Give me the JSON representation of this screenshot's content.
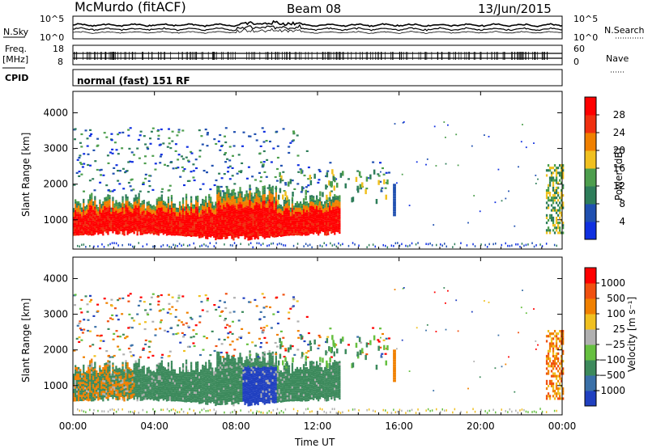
{
  "header": {
    "station": "McMurdo (fitACF)",
    "beam": "Beam 08",
    "date": "13/Jun/2015"
  },
  "top_panel": {
    "left_label": "N.Sky",
    "right_label": "N.Search",
    "left_ticks": [
      "10^5",
      "10^0"
    ],
    "right_ticks": [
      "10^5",
      "10^0"
    ]
  },
  "freq_panel": {
    "left_label_1": "Freq.",
    "left_label_2": "[MHz]",
    "right_label": "Nave",
    "left_ticks": [
      "18",
      "8"
    ],
    "right_ticks": [
      "60",
      "0"
    ]
  },
  "cpid": {
    "label": "CPID",
    "mode": "normal (fast) 151 RF"
  },
  "power_panel": {
    "ylabel": "Slant Range [km]",
    "colorbar_label": "Power [dB]"
  },
  "velocity_panel": {
    "ylabel": "Slant Range [km]",
    "colorbar_label": "Velocity [m s⁻¹]"
  },
  "xaxis": {
    "label": "Time UT"
  },
  "chart_data": [
    {
      "type": "heatmap",
      "title": "Power",
      "xlabel": "Time UT",
      "ylabel": "Slant Range [km]",
      "x_ticks": [
        "00:00",
        "04:00",
        "08:00",
        "12:00",
        "16:00",
        "20:00",
        "00:00"
      ],
      "xlim_hours": [
        0,
        24
      ],
      "y_ticks": [
        1000,
        2000,
        3000,
        4000
      ],
      "ylim": [
        180,
        4600
      ],
      "colorbar": {
        "label": "Power [dB]",
        "ticks": [
          4,
          8,
          12,
          16,
          20,
          24,
          28
        ],
        "range": [
          0,
          32
        ],
        "colors": [
          "#1030e0",
          "#2050b0",
          "#2e7d5a",
          "#4d9e4d",
          "#f0c020",
          "#f08000",
          "#f03010",
          "#ff0000"
        ]
      }
    },
    {
      "type": "heatmap",
      "title": "Velocity",
      "xlabel": "Time UT",
      "ylabel": "Slant Range [km]",
      "x_ticks": [
        "00:00",
        "04:00",
        "08:00",
        "12:00",
        "16:00",
        "20:00",
        "00:00"
      ],
      "xlim_hours": [
        0,
        24
      ],
      "y_ticks": [
        1000,
        2000,
        3000,
        4000
      ],
      "ylim": [
        180,
        4600
      ],
      "colorbar": {
        "label": "Velocity [m s⁻¹]",
        "ticks": [
          "1000",
          "500",
          "100",
          "25",
          "−25",
          "−100",
          "−500",
          "−1000"
        ],
        "colors": [
          "#2040c0",
          "#3a70a8",
          "#3d8a5c",
          "#66c040",
          "#b0b0b0",
          "#f0c020",
          "#f08000",
          "#f05010",
          "#ff0000"
        ]
      }
    }
  ]
}
